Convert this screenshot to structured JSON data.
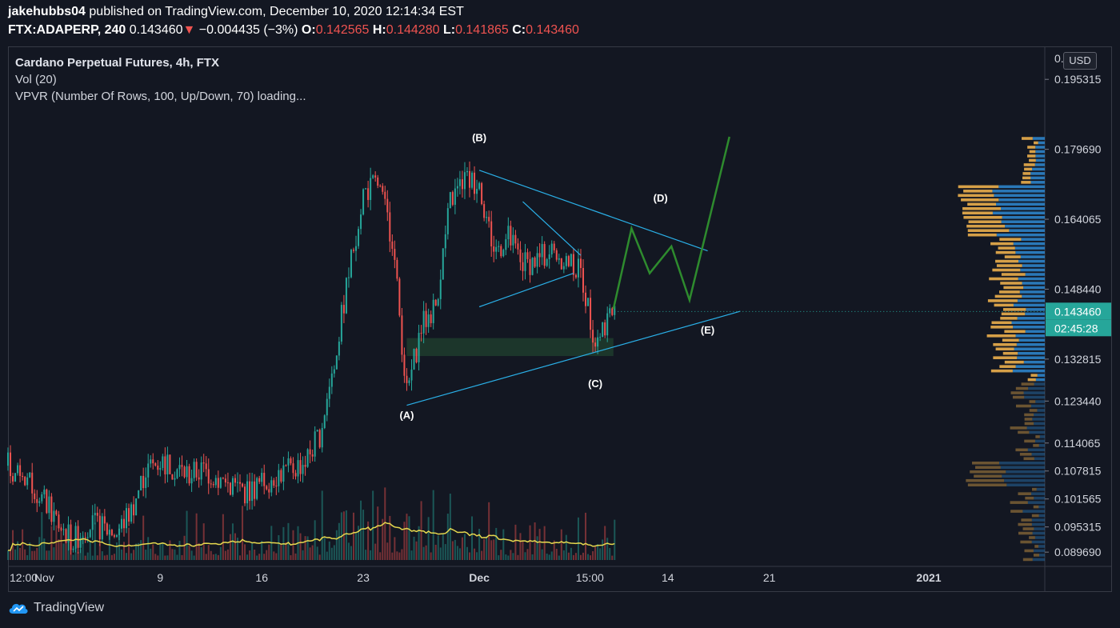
{
  "header": {
    "author": "jakehubbs04",
    "published": "published on TradingView.com, December 10, 2020 12:14:34 EST",
    "symbol": "FTX:ADAPERP, 240",
    "last": "0.143460",
    "arrow": "▼",
    "change": "−0.004435 (−3%)",
    "o_label": "O:",
    "o_value": "0.142565",
    "h_label": "H:",
    "h_value": "0.144280",
    "l_label": "L:",
    "l_value": "0.141865",
    "c_label": "C:",
    "c_value": "0.143460"
  },
  "legend": {
    "title": "Cardano Perpetual Futures, 4h, FTX",
    "vol": "Vol (20)",
    "vpvr": "VPVR (Number Of Rows, 100, Up/Down, 70) loading..."
  },
  "currency_button": "USD",
  "footer": {
    "brand": "TradingView",
    "logo_icon": "tradingview-cloud-icon"
  },
  "colors": {
    "background": "#131722",
    "up": "#26a69a",
    "down": "#ef5350",
    "trendline": "#2ab0e8",
    "projection": "#2e8b2e",
    "volume_ma": "#e6d84e",
    "zone": "#1e3a2c",
    "vp_up": "#2a78b8",
    "vp_down": "#d6a048"
  },
  "chart_data": {
    "type": "candlestick",
    "title": "Cardano Perpetual Futures, 4h, FTX",
    "x_ticks": [
      "12:00",
      "Nov",
      "9",
      "16",
      "23",
      "Dec",
      "15:00",
      "14",
      "21",
      "2021"
    ],
    "y_ticks": [
      "0.195315",
      "0.179690",
      "0.164065",
      "0.148440",
      "0.132815",
      "0.123440",
      "0.114065",
      "0.107815",
      "0.101565",
      "0.095315",
      "0.089690"
    ],
    "y_top_partial": "0.2",
    "price_label": "0.143460",
    "countdown_label": "02:45:28",
    "ylim": [
      0.0865,
      0.2025
    ],
    "x_date_range": [
      "2020-10-29 12:00",
      "2021-01-09"
    ],
    "price_path": [
      [
        "2020-10-29 12:00",
        0.109
      ],
      [
        "2020-10-31",
        0.106
      ],
      [
        "2020-11-02",
        0.096
      ],
      [
        "2020-11-03",
        0.092
      ],
      [
        "2020-11-04",
        0.096
      ],
      [
        "2020-11-06",
        0.094
      ],
      [
        "2020-11-07",
        0.099
      ],
      [
        "2020-11-08",
        0.108
      ],
      [
        "2020-11-09",
        0.11
      ],
      [
        "2020-11-11",
        0.107
      ],
      [
        "2020-11-12",
        0.108
      ],
      [
        "2020-11-13",
        0.106
      ],
      [
        "2020-11-15",
        0.103
      ],
      [
        "2020-11-16",
        0.105
      ],
      [
        "2020-11-17",
        0.107
      ],
      [
        "2020-11-18",
        0.108
      ],
      [
        "2020-11-19",
        0.11
      ],
      [
        "2020-11-20",
        0.116
      ],
      [
        "2020-11-21",
        0.132
      ],
      [
        "2020-11-22",
        0.152
      ],
      [
        "2020-11-23",
        0.17
      ],
      [
        "2020-11-24",
        0.172
      ],
      [
        "2020-11-25",
        0.16
      ],
      [
        "2020-11-26",
        0.125
      ],
      [
        "2020-11-27",
        0.14
      ],
      [
        "2020-11-28",
        0.145
      ],
      [
        "2020-11-29",
        0.168
      ],
      [
        "2020-11-30",
        0.173
      ],
      [
        "2020-12-01",
        0.172
      ],
      [
        "2020-12-02",
        0.157
      ],
      [
        "2020-12-03",
        0.16
      ],
      [
        "2020-12-04",
        0.154
      ],
      [
        "2020-12-05",
        0.155
      ],
      [
        "2020-12-06",
        0.157
      ],
      [
        "2020-12-07",
        0.155
      ],
      [
        "2020-12-08",
        0.152
      ],
      [
        "2020-12-09",
        0.137
      ],
      [
        "2020-12-10",
        0.143
      ]
    ],
    "annotations": [
      {
        "label": "(A)",
        "date": "2020-11-26",
        "price": 0.1195
      },
      {
        "label": "(B)",
        "date": "2020-12-01",
        "price": 0.1815
      },
      {
        "label": "(C)",
        "date": "2020-12-09",
        "price": 0.1265
      },
      {
        "label": "(D)",
        "date": "2020-12-13 12:00",
        "price": 0.168
      },
      {
        "label": "(E)",
        "date": "2020-12-16 18:00",
        "price": 0.1385
      }
    ],
    "trendlines": [
      {
        "from": [
          "2020-11-26",
          0.1225
        ],
        "to": [
          "2020-12-19",
          0.1435
        ]
      },
      {
        "from": [
          "2020-12-01",
          0.175
        ],
        "to": [
          "2020-12-16 18:00",
          0.157
        ]
      },
      {
        "from": [
          "2020-12-04",
          0.168
        ],
        "to": [
          "2020-12-08",
          0.156
        ]
      },
      {
        "from": [
          "2020-12-01",
          0.1445
        ],
        "to": [
          "2020-12-07 12:00",
          0.152
        ]
      }
    ],
    "projection_path": [
      [
        "2020-12-10 06:00",
        0.144
      ],
      [
        "2020-12-11 12:00",
        0.162
      ],
      [
        "2020-12-12 18:00",
        0.152
      ],
      [
        "2020-12-14 06:00",
        0.158
      ],
      [
        "2020-12-15 12:00",
        0.146
      ],
      [
        "2020-12-18 06:00",
        0.1825
      ]
    ],
    "zone": {
      "from": "2020-11-26",
      "to": "2020-12-10 06:00",
      "low": 0.1335,
      "high": 0.1375
    }
  }
}
